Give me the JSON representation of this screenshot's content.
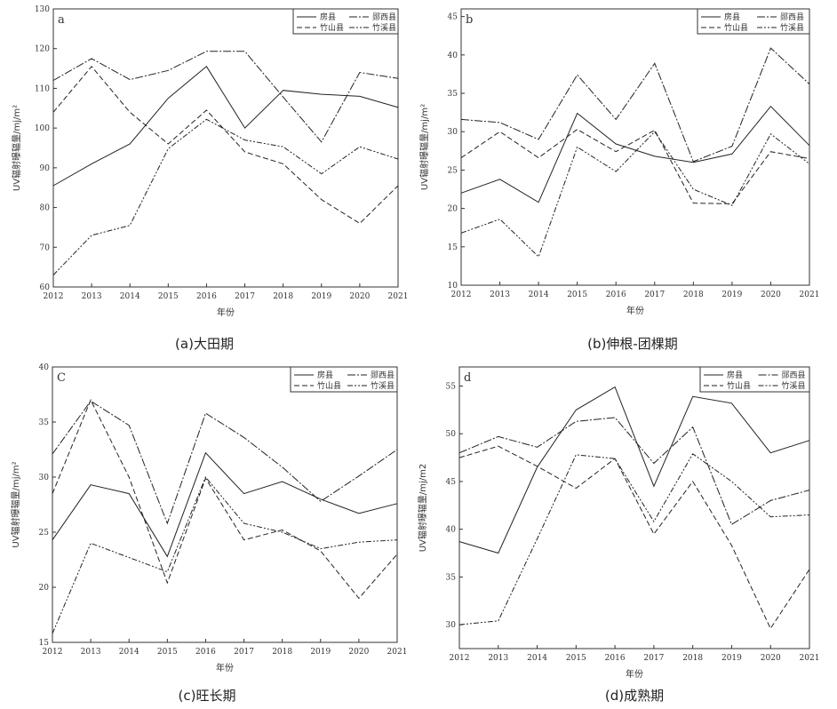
{
  "legend": [
    "房县",
    "郧西县",
    "竹山县",
    "竹溪县"
  ],
  "series_styles": [
    {
      "color": "#222222",
      "dash": "none"
    },
    {
      "color": "#222222",
      "dash": "9,2,2,2"
    },
    {
      "color": "#222222",
      "dash": "6,3"
    },
    {
      "color": "#222222",
      "dash": "6,2,2,2,2,2"
    }
  ],
  "chart_data": [
    {
      "type": "line",
      "panel": "a",
      "caption": "(a)大田期",
      "xlabel": "年份",
      "ylabel": "UV辐射曝辐量/mj/m²",
      "x": [
        2012,
        2013,
        2014,
        2015,
        2016,
        2017,
        2018,
        2019,
        2020,
        2021
      ],
      "ylim": [
        60,
        130
      ],
      "yticks": [
        60,
        70,
        80,
        90,
        100,
        110,
        120,
        130
      ],
      "series": [
        {
          "name": "房县",
          "values": [
            85.5,
            91,
            96,
            107.5,
            115.5,
            100,
            109.5,
            108.5,
            108,
            105.2
          ]
        },
        {
          "name": "郧西县",
          "values": [
            112,
            117.5,
            112.2,
            114.5,
            119.3,
            119.3,
            107.8,
            96.5,
            114,
            112.5
          ]
        },
        {
          "name": "竹山县",
          "values": [
            104,
            115.5,
            104,
            96,
            104.5,
            94,
            91,
            82,
            76,
            85.5
          ]
        },
        {
          "name": "竹溪县",
          "values": [
            63,
            73,
            75.5,
            94.8,
            102.2,
            97,
            95.3,
            88.5,
            95.3,
            92.2
          ]
        }
      ]
    },
    {
      "type": "line",
      "panel": "b",
      "caption": "(b)伸根-团棵期",
      "xlabel": "年份",
      "ylabel": "UV辐射曝辐量/mj/m²",
      "x": [
        2012,
        2013,
        2014,
        2015,
        2016,
        2017,
        2018,
        2019,
        2020,
        2021
      ],
      "ylim": [
        10,
        46
      ],
      "yticks": [
        10,
        15,
        20,
        25,
        30,
        35,
        40,
        45
      ],
      "series": [
        {
          "name": "房县",
          "values": [
            22,
            23.8,
            20.8,
            32.4,
            28.4,
            26.8,
            26.0,
            27.1,
            33.3,
            28.2
          ]
        },
        {
          "name": "郧西县",
          "values": [
            31.6,
            31.2,
            29.0,
            37.4,
            31.6,
            38.9,
            26.1,
            28.1,
            40.9,
            36.2
          ]
        },
        {
          "name": "竹山县",
          "values": [
            26.6,
            30.0,
            26.6,
            30.3,
            27.4,
            30.2,
            20.7,
            20.6,
            27.4,
            26.5
          ]
        },
        {
          "name": "竹溪县",
          "values": [
            16.8,
            18.6,
            13.7,
            28.0,
            24.8,
            30.0,
            22.5,
            20.4,
            29.7,
            25.8
          ]
        }
      ]
    },
    {
      "type": "line",
      "panel": "C",
      "caption": "(c)旺长期",
      "xlabel": "年份",
      "ylabel": "UV辐射曝辐量/mj/m²",
      "x": [
        2012,
        2013,
        2014,
        2015,
        2016,
        2017,
        2018,
        2019,
        2020,
        2021
      ],
      "ylim": [
        15,
        40
      ],
      "yticks": [
        15,
        20,
        25,
        30,
        35,
        40
      ],
      "series": [
        {
          "name": "房县",
          "values": [
            24.3,
            29.3,
            28.5,
            22.8,
            32.2,
            28.5,
            29.6,
            28.0,
            26.7,
            27.6
          ]
        },
        {
          "name": "郧西县",
          "values": [
            32.1,
            36.9,
            34.7,
            25.8,
            35.8,
            33.6,
            30.9,
            27.8,
            30.1,
            32.5
          ]
        },
        {
          "name": "竹山县",
          "values": [
            28.5,
            37.0,
            30.0,
            20.4,
            29.9,
            24.3,
            25.2,
            23.3,
            19.0,
            23.0
          ]
        },
        {
          "name": "竹溪县",
          "values": [
            15.8,
            24.0,
            22.7,
            21.4,
            30.0,
            25.8,
            25.0,
            23.5,
            24.1,
            24.3
          ]
        }
      ]
    },
    {
      "type": "line",
      "panel": "d",
      "caption": "(d)成熟期",
      "xlabel": "年份",
      "ylabel": "UV辐射曝辐量/mj/m2",
      "x": [
        2012,
        2013,
        2014,
        2015,
        2016,
        2017,
        2018,
        2019,
        2020,
        2021
      ],
      "ylim": [
        27.5,
        57
      ],
      "yticks": [
        30,
        35,
        40,
        45,
        50,
        55
      ],
      "series": [
        {
          "name": "房县",
          "values": [
            38.7,
            37.5,
            46.5,
            52.5,
            54.9,
            44.5,
            53.9,
            53.2,
            48.0,
            49.3
          ]
        },
        {
          "name": "郧西县",
          "values": [
            48.0,
            49.7,
            48.6,
            51.3,
            51.7,
            46.9,
            50.7,
            40.5,
            43.0,
            44.1
          ]
        },
        {
          "name": "竹山县",
          "values": [
            47.5,
            48.7,
            46.6,
            44.3,
            47.4,
            39.5,
            45.0,
            38.3,
            29.6,
            35.8
          ]
        },
        {
          "name": "竹溪县",
          "values": [
            30.0,
            30.4,
            39.0,
            47.8,
            47.4,
            40.8,
            47.9,
            45.0,
            41.3,
            41.5
          ]
        }
      ]
    }
  ]
}
